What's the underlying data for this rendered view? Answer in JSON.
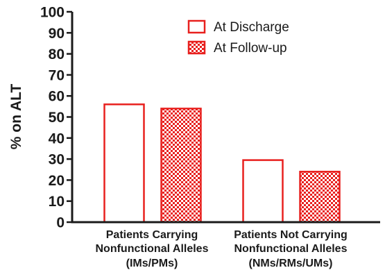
{
  "chart_data": {
    "type": "bar",
    "title": "",
    "xlabel": "",
    "ylabel": "% on ALT",
    "ylim": [
      0,
      100
    ],
    "yticks": [
      0,
      10,
      20,
      30,
      40,
      50,
      60,
      70,
      80,
      90,
      100
    ],
    "grid": false,
    "legend_position": "top-right",
    "categories": [
      [
        "Patients Carrying",
        "Nonfunctional Alleles",
        "(IMs/PMs)"
      ],
      [
        "Patients Not Carrying",
        "Nonfunctional Alleles",
        "(NMs/RMs/UMs)"
      ]
    ],
    "series": [
      {
        "name": "At Discharge",
        "values": [
          56,
          29.5
        ],
        "fill": "solid-white",
        "color": "#e8201e"
      },
      {
        "name": "At Follow-up",
        "values": [
          54,
          24
        ],
        "fill": "checkered",
        "color": "#e8201e"
      }
    ],
    "colors": {
      "bar_outline": "#e8201e",
      "axis": "#1a1a1a",
      "text": "#1a1a1a"
    }
  }
}
